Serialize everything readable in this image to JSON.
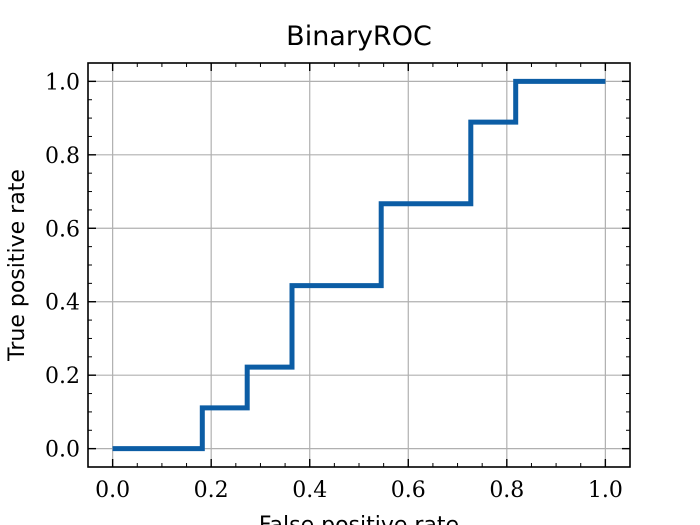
{
  "chart_data": {
    "type": "line",
    "title": "BinaryROC",
    "xlabel": "False positive rate",
    "ylabel": "True positive rate",
    "xlim": [
      -0.05,
      1.05
    ],
    "ylim": [
      -0.05,
      1.05
    ],
    "grid": true,
    "xticks": [
      "0.0",
      "0.2",
      "0.4",
      "0.6",
      "0.8",
      "1.0"
    ],
    "yticks": [
      "0.0",
      "0.2",
      "0.4",
      "0.6",
      "0.8",
      "1.0"
    ],
    "series": [
      {
        "x": [
          0.0,
          0.182,
          0.182,
          0.273,
          0.273,
          0.364,
          0.364,
          0.545,
          0.545,
          0.727,
          0.727,
          0.818,
          0.818,
          1.0
        ],
        "y": [
          0.0,
          0.0,
          0.111,
          0.111,
          0.222,
          0.222,
          0.444,
          0.444,
          0.667,
          0.667,
          0.889,
          0.889,
          1.0,
          1.0
        ],
        "color": "#0c5da5"
      }
    ]
  }
}
